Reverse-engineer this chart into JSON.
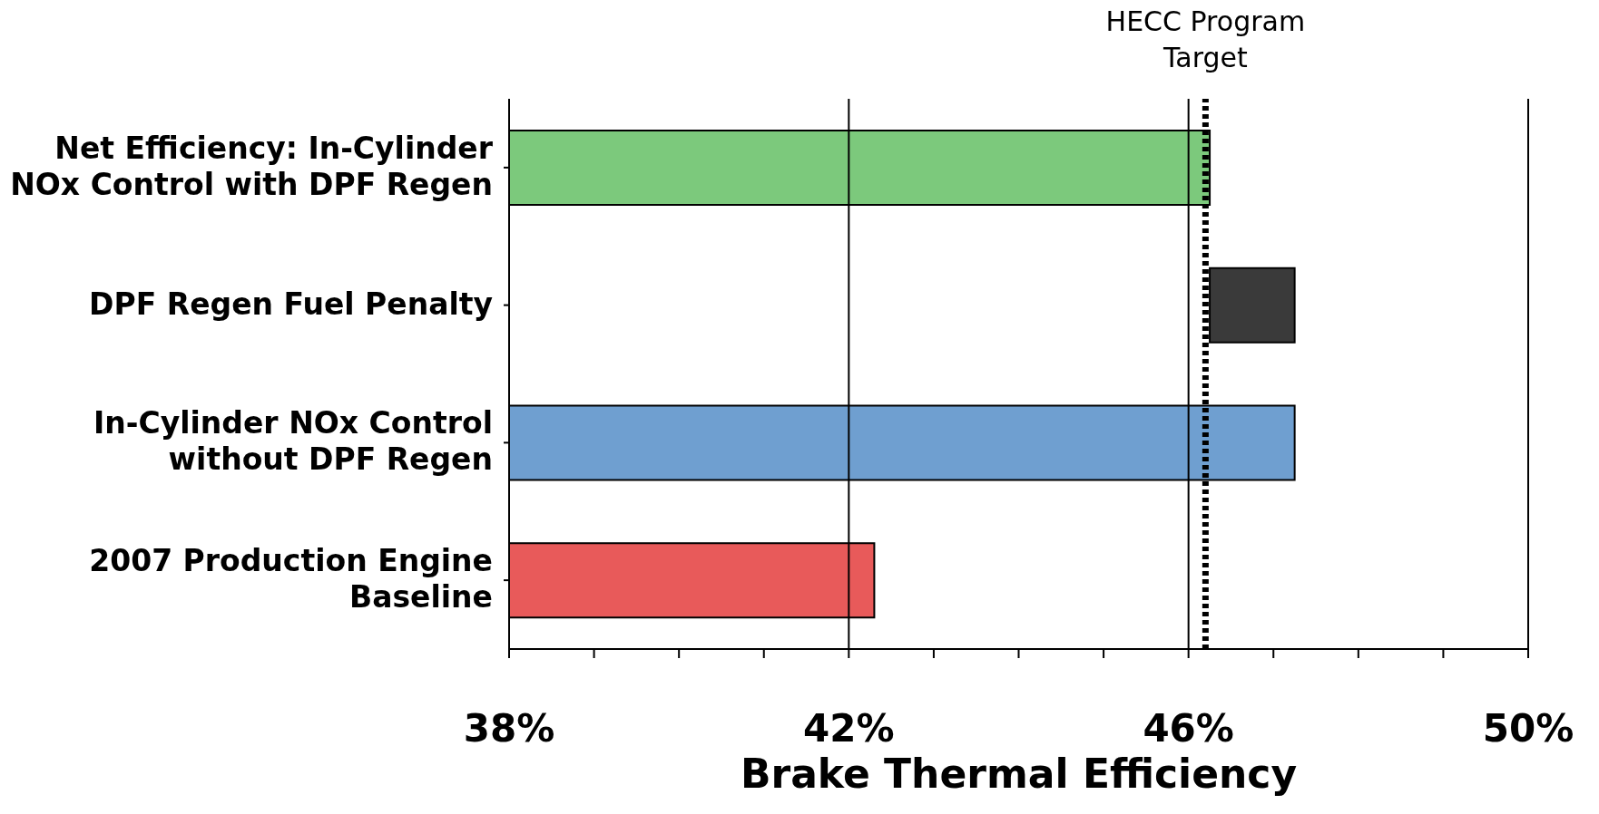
{
  "chart_data": {
    "type": "bar",
    "orientation": "horizontal",
    "xlabel": "Brake Thermal Efficiency",
    "categories": [
      "Net Efficiency: In-Cylinder NOx Control with DPF Regen",
      "DPF Regen Fuel Penalty",
      "In-Cylinder NOx Control without DPF Regen",
      "2007 Production Engine Baseline"
    ],
    "values": [
      46.25,
      1.0,
      47.25,
      42.3
    ],
    "base": [
      null,
      46.25,
      null,
      null
    ],
    "colors": [
      "#7cc97c",
      "#3a3a3a",
      "#6f9fd0",
      "#e85a5a"
    ],
    "xlim": [
      38,
      50
    ],
    "xticks": [
      {
        "value": 38,
        "label": "38%"
      },
      {
        "value": 39,
        "label": null
      },
      {
        "value": 40,
        "label": null
      },
      {
        "value": 41,
        "label": null
      },
      {
        "value": 42,
        "label": "42%"
      },
      {
        "value": 43,
        "label": null
      },
      {
        "value": 44,
        "label": null
      },
      {
        "value": 45,
        "label": null
      },
      {
        "value": 46,
        "label": "46%"
      },
      {
        "value": 47,
        "label": null
      },
      {
        "value": 48,
        "label": null
      },
      {
        "value": 49,
        "label": null
      },
      {
        "value": 50,
        "label": "50%"
      }
    ],
    "grid": "x",
    "ref_lines": [
      {
        "axis": "x",
        "value": 46.2,
        "label": "HECC Program Target",
        "line_style": "dotted",
        "color": "#000000"
      }
    ]
  }
}
